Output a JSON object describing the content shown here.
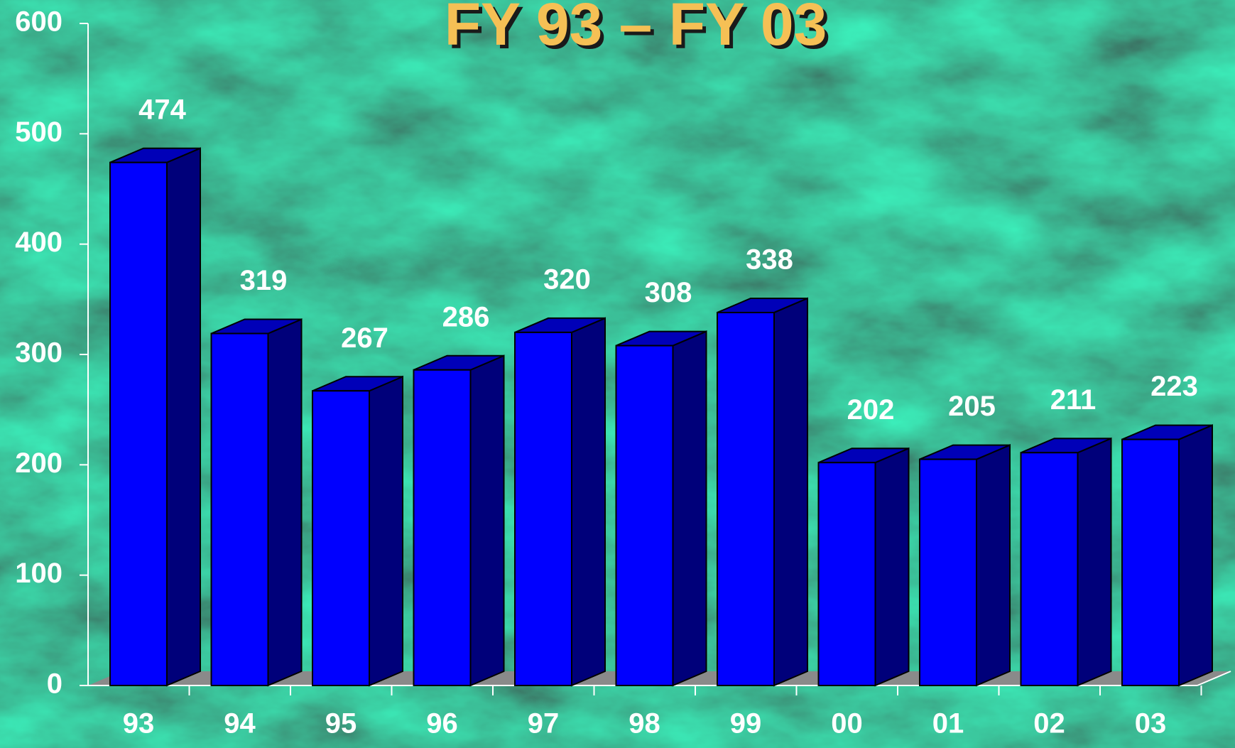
{
  "chart_data": {
    "type": "bar3d",
    "title": "FY 93 – FY 03",
    "categories": [
      "93",
      "94",
      "95",
      "96",
      "97",
      "98",
      "99",
      "00",
      "01",
      "02",
      "03"
    ],
    "values": [
      474,
      319,
      267,
      286,
      320,
      308,
      338,
      202,
      205,
      211,
      223
    ],
    "color": "#0000ff",
    "ylim": [
      0,
      600
    ],
    "yticks": [
      0,
      100,
      200,
      300,
      400,
      500,
      600
    ],
    "grid": false
  }
}
